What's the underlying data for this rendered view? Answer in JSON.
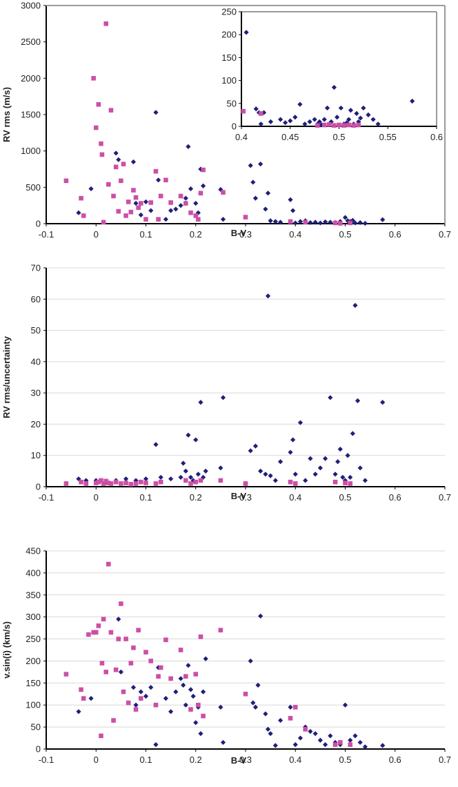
{
  "colors": {
    "series_diamond": "#1f1f7a",
    "series_square": "#cc4fa6"
  },
  "chart_data": [
    {
      "type": "scatter",
      "xlabel": "B-V",
      "ylabel": "RV rms (m/s)",
      "xlim": [
        -0.1,
        0.7
      ],
      "ylim": [
        0,
        3000
      ],
      "xticks": [
        "-0.1",
        "0",
        "0.1",
        "0.2",
        "0.3",
        "0.4",
        "0.5",
        "0.6",
        "0.7"
      ],
      "yticks": [
        "0",
        "500",
        "1000",
        "1500",
        "2000",
        "2500",
        "3000"
      ],
      "grid": false,
      "series": [
        {
          "marker": "diamond",
          "x": [
            -0.035,
            -0.01,
            0.04,
            0.045,
            0.075,
            0.08,
            0.09,
            0.1,
            0.11,
            0.12,
            0.125,
            0.14,
            0.15,
            0.16,
            0.17,
            0.18,
            0.185,
            0.19,
            0.2,
            0.205,
            0.21,
            0.215,
            0.25,
            0.255,
            0.31,
            0.315,
            0.32,
            0.33,
            0.34,
            0.345,
            0.35,
            0.36,
            0.37,
            0.39,
            0.395,
            0.4,
            0.41,
            0.42,
            0.43,
            0.44,
            0.45,
            0.46,
            0.47,
            0.48,
            0.49,
            0.5,
            0.505,
            0.51,
            0.515,
            0.52,
            0.53,
            0.54,
            0.575
          ],
          "y": [
            150,
            480,
            970,
            880,
            850,
            280,
            120,
            300,
            180,
            1530,
            600,
            60,
            180,
            200,
            250,
            350,
            1060,
            480,
            280,
            150,
            750,
            520,
            470,
            60,
            800,
            570,
            350,
            820,
            200,
            420,
            40,
            30,
            20,
            330,
            180,
            10,
            30,
            40,
            15,
            20,
            10,
            25,
            20,
            15,
            30,
            85,
            40,
            30,
            45,
            10,
            15,
            5,
            55
          ]
        },
        {
          "marker": "square",
          "x": [
            -0.06,
            -0.03,
            -0.025,
            -0.005,
            0,
            0.005,
            0.01,
            0.012,
            0.015,
            0.02,
            0.025,
            0.03,
            0.035,
            0.04,
            0.045,
            0.05,
            0.055,
            0.06,
            0.065,
            0.07,
            0.075,
            0.08,
            0.085,
            0.09,
            0.1,
            0.11,
            0.12,
            0.125,
            0.13,
            0.14,
            0.15,
            0.17,
            0.18,
            0.19,
            0.2,
            0.205,
            0.21,
            0.215,
            0.255,
            0.3,
            0.39,
            0.42,
            0.48,
            0.49,
            0.51
          ],
          "y": [
            590,
            350,
            110,
            2000,
            1320,
            1640,
            1100,
            950,
            20,
            2750,
            540,
            1560,
            380,
            780,
            170,
            590,
            820,
            110,
            300,
            160,
            460,
            360,
            220,
            280,
            60,
            290,
            720,
            60,
            380,
            600,
            290,
            380,
            280,
            150,
            110,
            60,
            420,
            740,
            430,
            90,
            30,
            20,
            10,
            5,
            10
          ]
        }
      ],
      "inset": {
        "xlim": [
          0.4,
          0.6
        ],
        "ylim": [
          0,
          250
        ],
        "xticks": [
          "0.4",
          "0.45",
          "0.5",
          "0.55",
          "0.6"
        ],
        "yticks": [
          "0",
          "50",
          "100",
          "150",
          "200",
          "250"
        ],
        "series": [
          {
            "marker": "diamond",
            "x": [
              0.405,
              0.415,
              0.418,
              0.42,
              0.423,
              0.43,
              0.44,
              0.445,
              0.45,
              0.455,
              0.46,
              0.465,
              0.47,
              0.475,
              0.478,
              0.48,
              0.482,
              0.485,
              0.488,
              0.49,
              0.492,
              0.495,
              0.498,
              0.5,
              0.502,
              0.505,
              0.508,
              0.51,
              0.512,
              0.515,
              0.518,
              0.52,
              0.522,
              0.525,
              0.53,
              0.535,
              0.54,
              0.575
            ],
            "y": [
              205,
              38,
              30,
              5,
              30,
              10,
              15,
              8,
              12,
              20,
              48,
              5,
              10,
              15,
              5,
              10,
              3,
              15,
              40,
              5,
              10,
              85,
              20,
              3,
              40,
              5,
              8,
              15,
              35,
              5,
              28,
              10,
              18,
              40,
              25,
              15,
              5,
              55
            ]
          },
          {
            "marker": "square",
            "x": [
              0.402,
              0.42,
              0.478,
              0.485,
              0.49,
              0.495,
              0.5,
              0.505,
              0.51,
              0.515,
              0.52
            ],
            "y": [
              33,
              28,
              2,
              3,
              4,
              2,
              3,
              2,
              3,
              2,
              3
            ]
          }
        ]
      }
    },
    {
      "type": "scatter",
      "xlabel": "B-V",
      "ylabel": "RV rms/uncertainty",
      "xlim": [
        -0.1,
        0.7
      ],
      "ylim": [
        0,
        70
      ],
      "xticks": [
        "-0.1",
        "0",
        "0.1",
        "0.2",
        "0.3",
        "0.4",
        "0.5",
        "0.6",
        "0.7"
      ],
      "yticks": [
        "0",
        "10",
        "20",
        "30",
        "40",
        "50",
        "60",
        "70"
      ],
      "grid": true,
      "series": [
        {
          "marker": "diamond",
          "x": [
            -0.035,
            -0.02,
            0,
            0.02,
            0.04,
            0.06,
            0.08,
            0.1,
            0.12,
            0.13,
            0.15,
            0.17,
            0.175,
            0.18,
            0.185,
            0.19,
            0.195,
            0.2,
            0.205,
            0.21,
            0.215,
            0.22,
            0.25,
            0.255,
            0.3,
            0.31,
            0.32,
            0.33,
            0.34,
            0.345,
            0.35,
            0.36,
            0.37,
            0.39,
            0.395,
            0.4,
            0.41,
            0.42,
            0.43,
            0.44,
            0.45,
            0.46,
            0.47,
            0.48,
            0.485,
            0.49,
            0.495,
            0.5,
            0.505,
            0.51,
            0.515,
            0.52,
            0.525,
            0.53,
            0.54,
            0.575
          ],
          "y": [
            2.5,
            2,
            2,
            1.5,
            2,
            2.5,
            2,
            2.5,
            13.5,
            3,
            2.5,
            3,
            7.5,
            5,
            16.5,
            3,
            2,
            15,
            4,
            27,
            3,
            5,
            6,
            28.5,
            1,
            11.5,
            13,
            5,
            4,
            61,
            3.5,
            2,
            8,
            11,
            15,
            4,
            20.5,
            2,
            9,
            4,
            6,
            9,
            28.5,
            4,
            8,
            12,
            3,
            2,
            10,
            3,
            17,
            58,
            27.5,
            6,
            2,
            27
          ]
        },
        {
          "marker": "square",
          "x": [
            -0.06,
            -0.03,
            -0.02,
            0,
            0.005,
            0.01,
            0.015,
            0.02,
            0.025,
            0.03,
            0.04,
            0.05,
            0.06,
            0.07,
            0.08,
            0.09,
            0.1,
            0.12,
            0.13,
            0.18,
            0.19,
            0.2,
            0.21,
            0.25,
            0.3,
            0.39,
            0.4,
            0.48,
            0.5,
            0.51
          ],
          "y": [
            1,
            1.5,
            1,
            1.2,
            1.5,
            2,
            1,
            1.8,
            1.2,
            1,
            1.5,
            1,
            1.2,
            0.8,
            1,
            1.5,
            1.2,
            1,
            1.5,
            2,
            1,
            1.5,
            2,
            2,
            1,
            1.5,
            1,
            1.5,
            1.2,
            1
          ]
        }
      ]
    },
    {
      "type": "scatter",
      "xlabel": "B-V",
      "ylabel": "v.sin(i) (km/s)",
      "xlim": [
        -0.1,
        0.7
      ],
      "ylim": [
        0,
        450
      ],
      "xticks": [
        "-0.1",
        "0",
        "0.1",
        "0.2",
        "0.3",
        "0.4",
        "0.5",
        "0.6",
        "0.7"
      ],
      "yticks": [
        "0",
        "50",
        "100",
        "150",
        "200",
        "250",
        "300",
        "350",
        "400",
        "450"
      ],
      "grid": true,
      "series": [
        {
          "marker": "diamond",
          "x": [
            -0.035,
            -0.01,
            0.045,
            0.05,
            0.075,
            0.08,
            0.09,
            0.1,
            0.11,
            0.12,
            0.125,
            0.14,
            0.15,
            0.16,
            0.17,
            0.175,
            0.18,
            0.185,
            0.19,
            0.195,
            0.2,
            0.205,
            0.21,
            0.215,
            0.22,
            0.25,
            0.255,
            0.31,
            0.315,
            0.32,
            0.325,
            0.33,
            0.34,
            0.345,
            0.35,
            0.36,
            0.37,
            0.39,
            0.4,
            0.41,
            0.42,
            0.43,
            0.44,
            0.45,
            0.46,
            0.47,
            0.48,
            0.49,
            0.5,
            0.51,
            0.52,
            0.53,
            0.54,
            0.575
          ],
          "y": [
            85,
            115,
            295,
            175,
            140,
            100,
            130,
            120,
            140,
            10,
            185,
            115,
            85,
            130,
            160,
            145,
            100,
            190,
            135,
            120,
            60,
            95,
            35,
            130,
            205,
            95,
            15,
            200,
            105,
            95,
            145,
            302,
            80,
            45,
            35,
            8,
            65,
            95,
            10,
            25,
            50,
            40,
            35,
            20,
            10,
            30,
            15,
            10,
            100,
            20,
            30,
            15,
            5,
            8
          ]
        },
        {
          "marker": "square",
          "x": [
            -0.06,
            -0.03,
            -0.025,
            -0.015,
            -0.005,
            0,
            0.005,
            0.01,
            0.012,
            0.015,
            0.02,
            0.025,
            0.03,
            0.035,
            0.04,
            0.045,
            0.05,
            0.055,
            0.06,
            0.065,
            0.07,
            0.075,
            0.08,
            0.085,
            0.09,
            0.1,
            0.11,
            0.12,
            0.125,
            0.13,
            0.14,
            0.15,
            0.17,
            0.18,
            0.19,
            0.2,
            0.205,
            0.21,
            0.215,
            0.25,
            0.3,
            0.39,
            0.4,
            0.42,
            0.48,
            0.49,
            0.51
          ],
          "y": [
            170,
            135,
            115,
            260,
            265,
            265,
            280,
            30,
            195,
            295,
            175,
            420,
            265,
            65,
            180,
            250,
            330,
            130,
            250,
            105,
            195,
            230,
            90,
            270,
            115,
            220,
            200,
            100,
            165,
            185,
            248,
            160,
            225,
            165,
            90,
            170,
            100,
            255,
            75,
            270,
            125,
            70,
            95,
            45,
            10,
            15,
            10
          ]
        }
      ]
    }
  ]
}
